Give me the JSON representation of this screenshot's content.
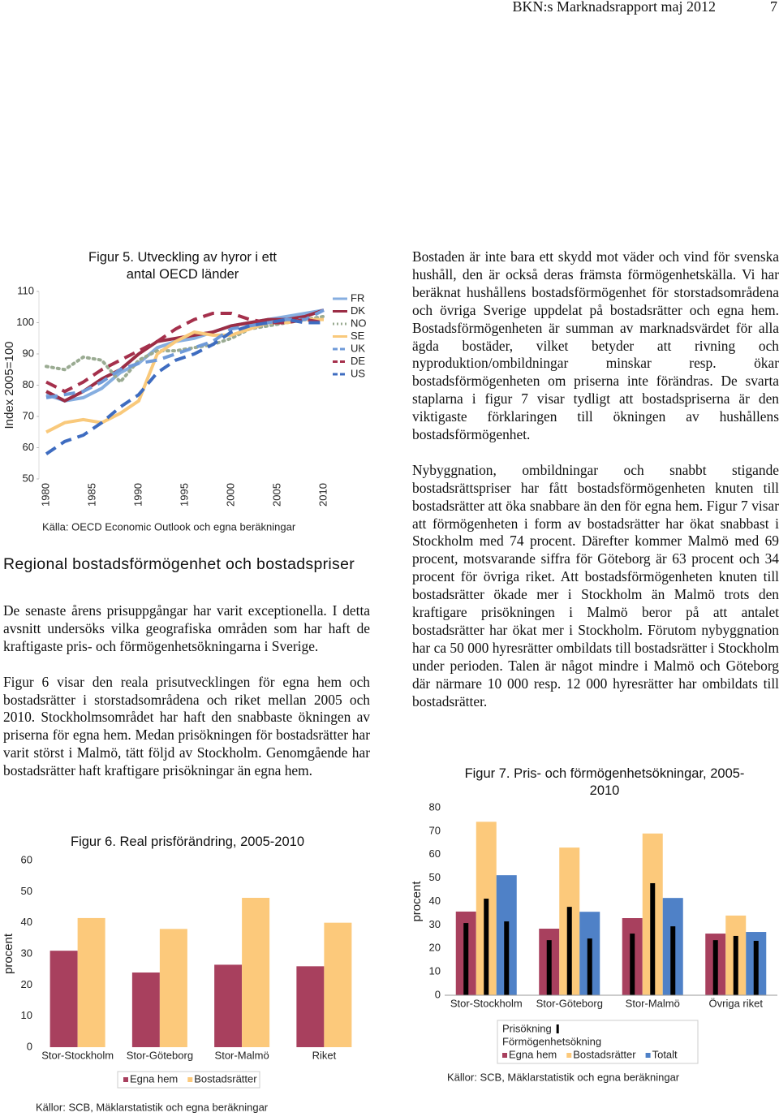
{
  "header": {
    "title": "BKN:s Marknadsrapport maj 2012",
    "page": "7"
  },
  "left": {
    "heading": "Regional bostadsförmögenhet och bostadspriser",
    "paragraphs": [
      "De senaste årens prisuppgångar har varit exceptionella. I detta avsnitt undersöks vilka geografiska områden som har haft de kraftigaste pris- och förmögenhetsökningarna i Sverige.",
      "Figur 6 visar den reala prisutvecklingen för egna hem och bostadsrätter i storstadsområdena och riket mellan 2005 och 2010. Stockholmsområdet har haft den snabbaste ökningen av priserna för egna hem. Medan prisökningen för bostadsrätter har varit störst i Malmö, tätt följd av Stockholm. Genomgående har bostadsrätter haft kraftigare prisökningar än egna hem."
    ]
  },
  "right": {
    "paragraphs": [
      "Bostaden är inte bara ett skydd mot väder och vind för svenska hushåll, den är också deras främsta förmögenhetskälla. Vi har beräknat hushållens bostadsförmögenhet för storstadsområdena och övriga Sverige uppdelat på bostadsrätter och egna hem. Bostadsförmögenheten är summan av marknadsvärdet för alla ägda bostäder, vilket betyder att rivning och nyproduktion/ombildningar minskar resp. ökar bostadsförmögenheten om priserna inte förändras. De svarta staplarna i figur 7 visar tydligt att bostadspriserna är den viktigaste förklaringen till ökningen av hushållens bostadsförmögenhet.",
      "Nybyggnation, ombildningar och snabbt stigande bostadsrättspriser har fått bostadsförmögenheten knuten till bostadsrätter att öka snabbare än den för egna hem. Figur 7 visar att förmögenheten i form av bostadsrätter har ökat snabbast i Stockholm med 74 procent. Därefter kommer Malmö med 69 procent, motsvarande siffra för Göteborg är 63 procent och 34 procent för övriga riket. Att bostadsförmögenheten knuten till bostadsrätter ökade mer i Stockholm än Malmö trots den kraftigare prisökningen i Malmö beror på att antalet bostadsrätter har ökat mer i Stockholm. Förutom nybyggnation har ca 50 000 hyresrätter ombildats till bostadsrätter i Stockholm under perioden. Talen är något mindre i Malmö och Göteborg där närmare 10 000 resp. 12 000 hyresrätter har ombildats till bostadsrätter."
    ]
  },
  "chart_data": [
    {
      "type": "line",
      "title": "Figur 5. Utveckling av hyror i ett antal OECD länder",
      "y_label": "Index 2005=100",
      "source": "Källa: OECD Economic Outlook och egna beräkningar",
      "x": [
        1980,
        1982,
        1984,
        1986,
        1988,
        1990,
        1992,
        1994,
        1996,
        1998,
        2000,
        2002,
        2004,
        2006,
        2008,
        2010
      ],
      "xlim": [
        1979,
        2011
      ],
      "xticks": [
        1980,
        1985,
        1990,
        1995,
        2000,
        2005,
        2010
      ],
      "ylim": [
        50,
        110
      ],
      "yticks": [
        50,
        60,
        70,
        80,
        90,
        100,
        110
      ],
      "series": [
        {
          "name": "FR",
          "color": "#86aee0",
          "dash": "solid",
          "values": [
            77,
            75,
            76,
            79,
            84,
            87,
            92,
            94,
            95,
            97,
            99,
            100,
            101,
            102,
            103,
            104
          ]
        },
        {
          "name": "DK",
          "color": "#9b2d45",
          "dash": "solid",
          "values": [
            78,
            75,
            78,
            82,
            85,
            90,
            94,
            95,
            96,
            97,
            99,
            100,
            101,
            101,
            102,
            104
          ]
        },
        {
          "name": "NO",
          "color": "#9aab92",
          "dash": "dotted",
          "values": [
            86,
            85,
            89,
            88,
            81,
            88,
            91,
            91,
            92,
            93,
            95,
            98,
            99,
            100,
            101,
            102
          ]
        },
        {
          "name": "SE",
          "color": "#f9c97b",
          "dash": "solid",
          "values": [
            65,
            68,
            69,
            68,
            71,
            75,
            90,
            94,
            97,
            96,
            96,
            98,
            100,
            100,
            101,
            101
          ]
        },
        {
          "name": "UK",
          "color": "#6f9ad8",
          "dash": "dashed",
          "values": [
            76,
            77,
            78,
            81,
            85,
            87,
            88,
            90,
            92,
            94,
            98,
            99,
            100,
            101,
            101,
            104
          ]
        },
        {
          "name": "DE",
          "color": "#a5304c",
          "dash": "dashed",
          "values": [
            81,
            78,
            81,
            85,
            88,
            91,
            94,
            98,
            101,
            103,
            103,
            101,
            100,
            100,
            101,
            100
          ]
        },
        {
          "name": "US",
          "color": "#3e6cc0",
          "dash": "dashed",
          "values": [
            58,
            62,
            64,
            68,
            73,
            77,
            84,
            88,
            90,
            93,
            97,
            99,
            100,
            101,
            100,
            100
          ]
        }
      ]
    },
    {
      "type": "bar",
      "title": "Figur 6. Real prisförändring, 2005-2010",
      "y_label": "procent",
      "source": "Källor: SCB, Mäklarstatistik och egna beräkningar",
      "categories": [
        "Stor-Stockholm",
        "Stor-Göteborg",
        "Stor-Malmö",
        "Riket"
      ],
      "ylim": [
        0,
        60
      ],
      "yticks": [
        0,
        10,
        20,
        30,
        40,
        50,
        60
      ],
      "series": [
        {
          "name": "Egna hem",
          "color": "#a8405e",
          "values": [
            31,
            24,
            26.5,
            26
          ]
        },
        {
          "name": "Bostadsrätter",
          "color": "#fcc97b",
          "values": [
            41.5,
            38,
            48,
            40
          ]
        }
      ]
    },
    {
      "type": "bar",
      "title": "Figur 7. Pris- och förmögenhetsökningar, 2005-2010",
      "y_label": "procent",
      "source": "Källor: SCB, Mäklarstatistik och egna beräkningar",
      "categories": [
        "Stor-Stockholm",
        "Stor-Göteborg",
        "Stor-Malmö",
        "Övriga riket"
      ],
      "ylim": [
        0,
        80
      ],
      "yticks": [
        0,
        10,
        20,
        30,
        40,
        50,
        60,
        70,
        80
      ],
      "series_group_label": "Förmögenhetsökning",
      "series": [
        {
          "name": "Egna hem",
          "color": "#a8405e",
          "values": [
            35.7,
            28.4,
            32.9,
            26.3
          ]
        },
        {
          "name": "Bostadsrätter",
          "color": "#fcc97b",
          "values": [
            74,
            63,
            69,
            34
          ]
        },
        {
          "name": "Totalt",
          "color": "#4f81c7",
          "values": [
            51.2,
            35.6,
            41.5,
            27
          ]
        }
      ],
      "overlay": {
        "name": "Prisökning",
        "color": "#000000",
        "values": [
          [
            30.8,
            23.5,
            26.3,
            23.5
          ],
          [
            41.2,
            37.7,
            47.8,
            25.3
          ],
          [
            31.5,
            24.2,
            29.4,
            23.2
          ]
        ]
      }
    }
  ]
}
